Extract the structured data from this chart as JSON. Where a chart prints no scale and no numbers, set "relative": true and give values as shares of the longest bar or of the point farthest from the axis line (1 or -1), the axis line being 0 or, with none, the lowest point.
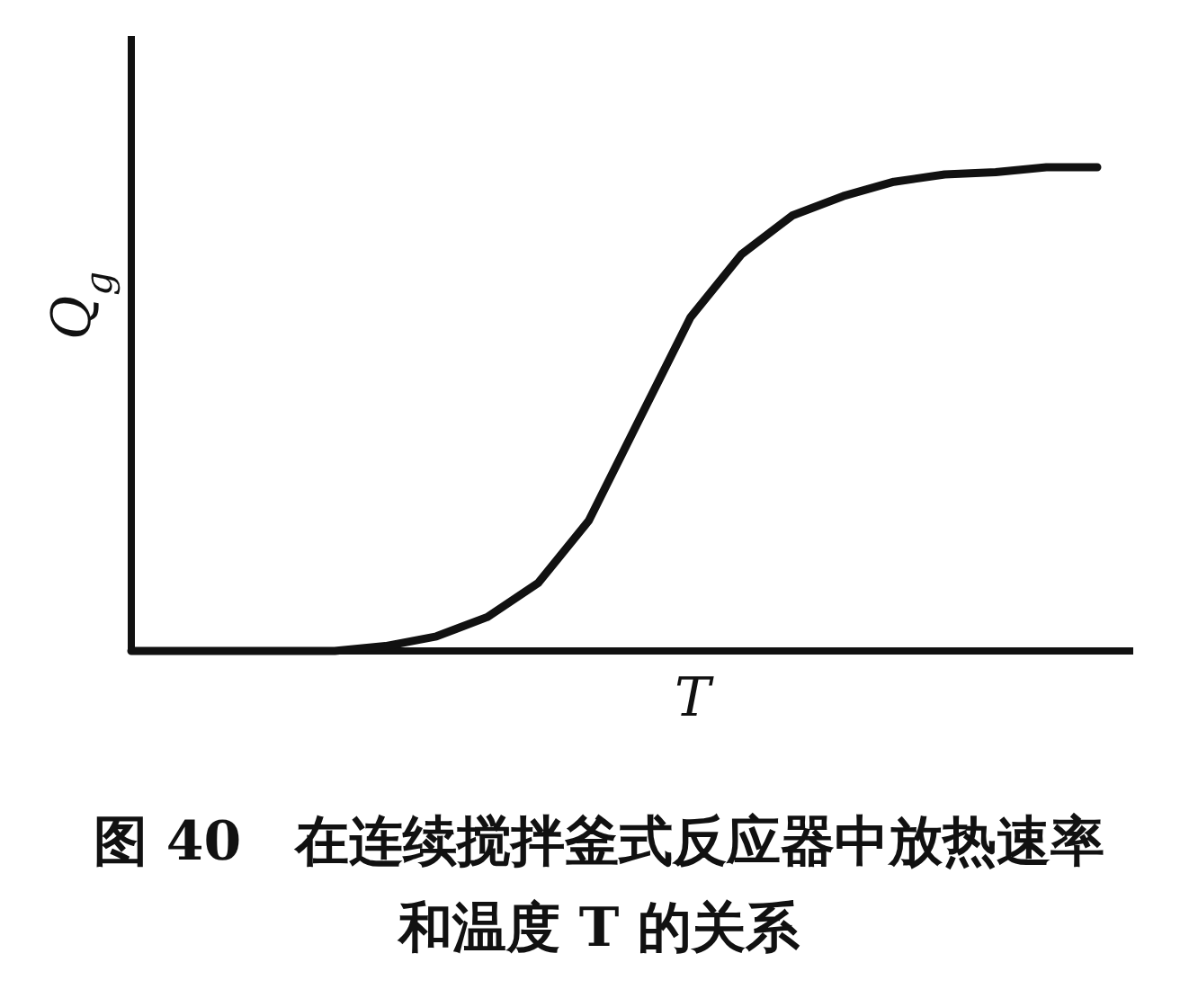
{
  "chart_data": {
    "type": "line",
    "relative": true,
    "title": "图 40　在连续搅拌釜式反应器中放热速率和温度 T 的关系",
    "xlabel": "T",
    "ylabel": "Q$_{g}$",
    "color": "#111111",
    "categories": [
      null,
      null,
      null,
      null,
      null,
      null,
      null,
      null,
      null,
      null,
      null,
      null,
      null,
      null,
      null,
      null,
      null,
      null,
      null,
      null
    ],
    "values": [
      0,
      0,
      0,
      0,
      0,
      0.01,
      0.03,
      0.07,
      0.14,
      0.27,
      0.48,
      0.69,
      0.82,
      0.9,
      0.94,
      0.97,
      0.985,
      0.99,
      1.0,
      1.0
    ]
  }
}
